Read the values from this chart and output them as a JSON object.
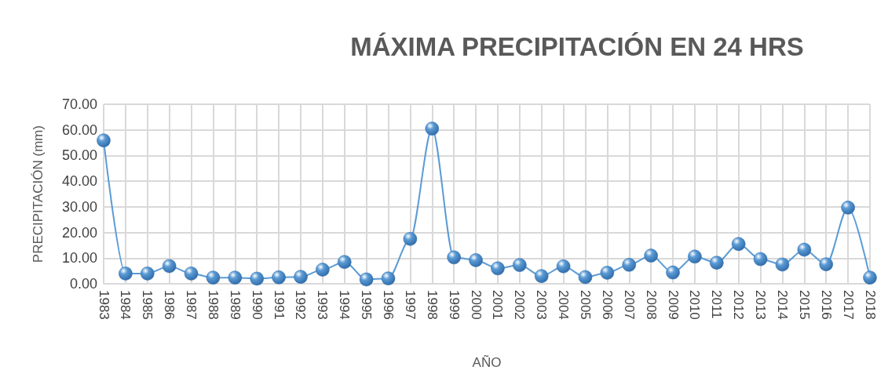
{
  "chart_data": {
    "type": "line",
    "title": "MÁXIMA PRECIPITACIÓN EN 24 HRS",
    "xlabel": "AÑO",
    "ylabel": "PRECIPITACIÓN (mm)",
    "categories": [
      "1983",
      "1984",
      "1985",
      "1986",
      "1987",
      "1988",
      "1989",
      "1990",
      "1991",
      "1992",
      "1993",
      "1994",
      "1995",
      "1996",
      "1997",
      "1998",
      "1999",
      "2000",
      "2001",
      "2002",
      "2003",
      "2004",
      "2005",
      "2006",
      "2007",
      "2008",
      "2009",
      "2010",
      "2011",
      "2012",
      "2013",
      "2014",
      "2015",
      "2016",
      "2017",
      "2018"
    ],
    "series": [
      {
        "color": "#5b9bd5",
        "values": [
          55.9,
          4.0,
          4.0,
          6.9,
          4.0,
          2.4,
          2.4,
          2.0,
          2.5,
          2.7,
          5.5,
          8.5,
          1.7,
          2.1,
          17.5,
          60.5,
          10.3,
          9.2,
          6.0,
          7.3,
          3.0,
          6.8,
          2.6,
          4.3,
          7.4,
          11.0,
          4.4,
          10.6,
          8.2,
          15.5,
          9.6,
          7.5,
          13.3,
          7.6,
          29.7,
          2.4
        ]
      }
    ],
    "ylim": [
      0,
      70
    ],
    "yticks": [
      {
        "value": 0,
        "label": "0.00"
      },
      {
        "value": 10,
        "label": "10.00"
      },
      {
        "value": 20,
        "label": "20.00"
      },
      {
        "value": 30,
        "label": "30.00"
      },
      {
        "value": 40,
        "label": "40.00"
      },
      {
        "value": 50,
        "label": "50.00"
      },
      {
        "value": 60,
        "label": "60.00"
      },
      {
        "value": 70,
        "label": "70.00"
      }
    ],
    "grid": true,
    "marker": "circle",
    "line_style": "solid"
  }
}
